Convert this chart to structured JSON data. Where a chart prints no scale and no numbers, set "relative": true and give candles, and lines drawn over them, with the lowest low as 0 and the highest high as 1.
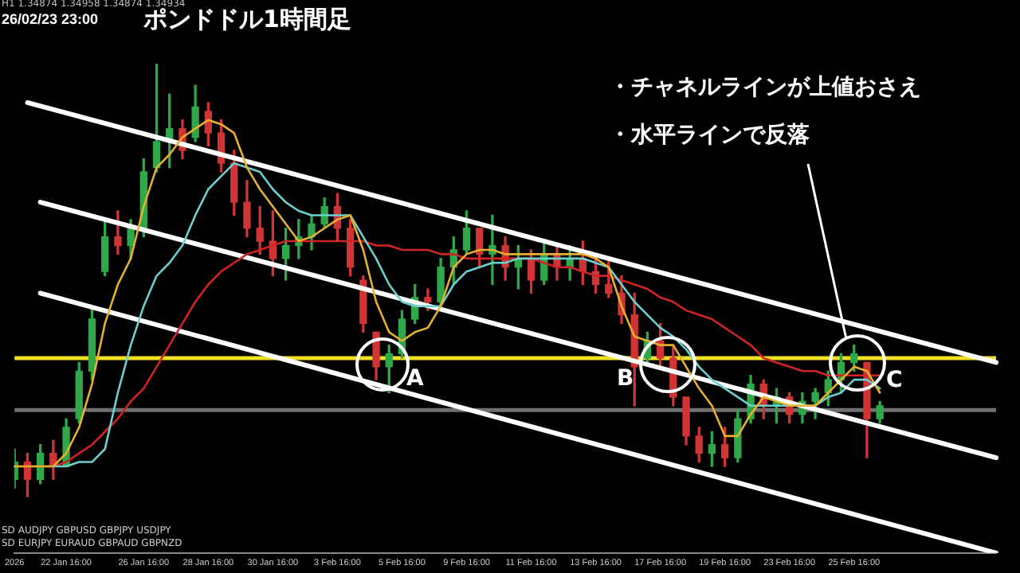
{
  "chart_data": {
    "type": "candlestick",
    "title": "ポンドドル1時間足",
    "relative": true,
    "legend": false,
    "grid": false,
    "marker": "none",
    "line_style": "solid",
    "categories": [
      "2026",
      null,
      null,
      null,
      "22 Jan 16:00",
      null,
      null,
      null,
      null,
      null,
      "26 Jan 16:00",
      null,
      null,
      null,
      null,
      "28 Jan 16:00",
      null,
      null,
      null,
      null,
      "30 Jan 16:00",
      null,
      null,
      null,
      null,
      "3 Feb 16:00",
      null,
      null,
      null,
      null,
      "5 Feb 16:00",
      null,
      null,
      null,
      null,
      "9 Feb 16:00",
      null,
      null,
      null,
      null,
      "11 Feb 16:00",
      null,
      null,
      null,
      null,
      "13 Feb 16:00",
      null,
      null,
      null,
      null,
      "17 Feb 16:00",
      null,
      null,
      null,
      null,
      "19 Feb 16:00",
      null,
      null,
      null,
      null,
      "23 Feb 16:00",
      null,
      null,
      null,
      null,
      "25 Feb 16:00",
      null,
      null,
      null,
      null,
      null,
      null,
      null,
      null,
      null,
      null,
      null
    ],
    "ohlc": [
      [
        0.04,
        0.11,
        0.02,
        0.08
      ],
      [
        0.08,
        0.1,
        0,
        0.04
      ],
      [
        0.04,
        0.12,
        0.03,
        0.1
      ],
      [
        0.1,
        0.13,
        0.04,
        0.07
      ],
      [
        0.07,
        0.18,
        0.07,
        0.16
      ],
      [
        0.18,
        0.31,
        0.17,
        0.29
      ],
      [
        0.29,
        0.44,
        0.27,
        0.41
      ],
      [
        0.52,
        0.64,
        0.51,
        0.6
      ],
      [
        0.6,
        0.66,
        0.56,
        0.58
      ],
      [
        0.58,
        0.64,
        0.55,
        0.62
      ],
      [
        0.62,
        0.78,
        0.6,
        0.75
      ],
      [
        0.76,
        1,
        0.75,
        0.82
      ],
      [
        0.82,
        0.93,
        0.76,
        0.85
      ],
      [
        0.85,
        0.87,
        0.78,
        0.8
      ],
      [
        0.83,
        0.95,
        0.82,
        0.9
      ],
      [
        0.89,
        0.91,
        0.81,
        0.84
      ],
      [
        0.84,
        0.87,
        0.75,
        0.77
      ],
      [
        0.77,
        0.8,
        0.65,
        0.68
      ],
      [
        0.68,
        0.73,
        0.6,
        0.62
      ],
      [
        0.62,
        0.67,
        0.56,
        0.59
      ],
      [
        0.59,
        0.66,
        0.51,
        0.55
      ],
      [
        0.55,
        0.62,
        0.5,
        0.58
      ],
      [
        0.58,
        0.64,
        0.55,
        0.6
      ],
      [
        0.6,
        0.65,
        0.57,
        0.63
      ],
      [
        0.63,
        0.69,
        0.62,
        0.67
      ],
      [
        0.67,
        0.7,
        0.59,
        0.62
      ],
      [
        0.62,
        0.64,
        0.51,
        0.53
      ],
      [
        0.5,
        0.51,
        0.38,
        0.4
      ],
      [
        0.38,
        0.38,
        0.27,
        0.3
      ],
      [
        0.3,
        0.35,
        0.24,
        0.33
      ],
      [
        0.33,
        0.43,
        0.32,
        0.41
      ],
      [
        0.41,
        0.49,
        0.4,
        0.46
      ],
      [
        0.46,
        0.48,
        0.43,
        0.45
      ],
      [
        0.45,
        0.55,
        0.44,
        0.53
      ],
      [
        0.53,
        0.6,
        0.49,
        0.57
      ],
      [
        0.57,
        0.66,
        0.56,
        0.62
      ],
      [
        0.62,
        0.62,
        0.53,
        0.56
      ],
      [
        0.56,
        0.65,
        0.49,
        0.58
      ],
      [
        0.58,
        0.6,
        0.5,
        0.53
      ],
      [
        0.53,
        0.58,
        0.48,
        0.55
      ],
      [
        0.55,
        0.57,
        0.47,
        0.5
      ],
      [
        0.5,
        0.59,
        0.49,
        0.56
      ],
      [
        0.56,
        0.58,
        0.5,
        0.53
      ],
      [
        0.53,
        0.58,
        0.5,
        0.55
      ],
      [
        0.55,
        0.59,
        0.49,
        0.52
      ],
      [
        0.52,
        0.56,
        0.47,
        0.49
      ],
      [
        0.49,
        0.55,
        0.46,
        0.47
      ],
      [
        0.47,
        0.51,
        0.4,
        0.42
      ],
      [
        0.42,
        0.47,
        0.21,
        0.3
      ],
      [
        0.32,
        0.38,
        0.31,
        0.36
      ],
      [
        0.36,
        0.4,
        0.3,
        0.32
      ],
      [
        0.32,
        0.35,
        0.21,
        0.23
      ],
      [
        0.23,
        0.23,
        0.12,
        0.14
      ],
      [
        0.14,
        0.16,
        0.08,
        0.1
      ],
      [
        0.1,
        0.15,
        0.07,
        0.12
      ],
      [
        0.12,
        0.16,
        0.07,
        0.09
      ],
      [
        0.09,
        0.2,
        0.08,
        0.18
      ],
      [
        0.18,
        0.28,
        0.17,
        0.26
      ],
      [
        0.26,
        0.27,
        0.18,
        0.21
      ],
      [
        0.21,
        0.25,
        0.17,
        0.23
      ],
      [
        0.23,
        0.24,
        0.17,
        0.19
      ],
      [
        0.19,
        0.24,
        0.17,
        0.22
      ],
      [
        0.22,
        0.25,
        0.18,
        0.24
      ],
      [
        0.24,
        0.29,
        0.21,
        0.27
      ],
      [
        0.27,
        0.33,
        0.24,
        0.31
      ],
      [
        0.31,
        0.35,
        0.29,
        0.33
      ],
      [
        0.31,
        0.31,
        0.09,
        0.18
      ],
      [
        0.18,
        0.22,
        0.17,
        0.21
      ],
      null,
      null,
      null,
      null,
      null,
      null,
      null,
      null,
      null
    ],
    "series": [
      {
        "type": "line",
        "color": "#e8b030",
        "values": [
          0.07,
          0.07,
          0.07,
          0.07,
          0.1,
          0.16,
          0.26,
          0.4,
          0.49,
          0.55,
          0.67,
          0.76,
          0.79,
          0.83,
          0.85,
          0.87,
          0.86,
          0.84,
          0.76,
          0.71,
          0.67,
          0.63,
          0.59,
          0.6,
          0.62,
          0.64,
          0.65,
          0.57,
          0.45,
          0.38,
          0.36,
          0.38,
          0.39,
          0.44,
          0.53,
          0.56,
          0.57,
          0.57,
          0.56,
          0.56,
          0.56,
          0.56,
          0.56,
          0.56,
          0.56,
          0.55,
          0.53,
          0.44,
          0.37,
          0.36,
          0.35,
          0.35,
          0.3,
          0.25,
          0.21,
          0.14,
          0.14,
          0.19,
          0.23,
          0.22,
          0.21,
          0.21,
          0.21,
          0.24,
          0.27,
          0.3,
          0.29,
          0.24,
          null,
          null,
          null,
          null,
          null,
          null,
          null,
          null,
          null
        ]
      },
      {
        "type": "line",
        "color": "#6ccfd0",
        "values": [
          null,
          null,
          null,
          0.07,
          0.07,
          0.08,
          0.08,
          0.11,
          0.24,
          0.35,
          0.44,
          0.51,
          0.54,
          0.58,
          0.65,
          0.71,
          0.74,
          0.77,
          0.76,
          0.75,
          0.71,
          0.68,
          0.66,
          0.65,
          0.65,
          0.65,
          0.65,
          0.6,
          0.55,
          0.49,
          0.45,
          0.44,
          0.44,
          0.44,
          0.49,
          0.52,
          0.53,
          0.54,
          0.54,
          0.55,
          0.55,
          0.55,
          0.55,
          0.55,
          0.55,
          0.54,
          0.53,
          0.49,
          0.45,
          0.42,
          0.39,
          0.37,
          0.34,
          0.3,
          0.27,
          0.25,
          0.23,
          0.21,
          0.21,
          0.21,
          0.21,
          0.21,
          0.21,
          0.23,
          0.24,
          0.27,
          0.27,
          0.25,
          null,
          null,
          null,
          null,
          null,
          null,
          null,
          null,
          null
        ]
      },
      {
        "type": "line",
        "color": "#d02424",
        "values": [
          0.07,
          0.07,
          0.07,
          0.07,
          0.08,
          0.1,
          0.12,
          0.15,
          0.18,
          0.22,
          0.25,
          0.3,
          0.35,
          0.4,
          0.45,
          0.49,
          0.52,
          0.54,
          0.56,
          0.57,
          0.58,
          0.59,
          0.59,
          0.59,
          0.59,
          0.59,
          0.59,
          0.59,
          0.58,
          0.58,
          0.57,
          0.57,
          0.57,
          0.56,
          0.56,
          0.55,
          0.55,
          0.55,
          0.55,
          0.55,
          0.55,
          0.54,
          0.53,
          0.53,
          0.52,
          0.51,
          0.51,
          0.5,
          0.49,
          0.48,
          0.46,
          0.45,
          0.43,
          0.42,
          0.41,
          0.39,
          0.37,
          0.35,
          0.32,
          0.31,
          0.3,
          0.29,
          0.29,
          0.28,
          0.28,
          0.28,
          0.28,
          0.28,
          null,
          null,
          null,
          null,
          null,
          null,
          null,
          null,
          null
        ]
      },
      {
        "type": "line",
        "color": "#ffffff",
        "values": [
          null,
          0.91,
          null,
          null,
          null,
          null,
          null,
          null,
          null,
          null,
          null,
          null,
          null,
          null,
          null,
          null,
          null,
          null,
          null,
          null,
          null,
          null,
          null,
          null,
          null,
          null,
          null,
          null,
          null,
          null,
          null,
          null,
          null,
          null,
          null,
          null,
          null,
          null,
          null,
          null,
          null,
          null,
          null,
          null,
          null,
          null,
          null,
          null,
          null,
          null,
          null,
          null,
          null,
          null,
          null,
          null,
          null,
          null,
          null,
          null,
          null,
          null,
          null,
          null,
          null,
          null,
          null,
          null,
          null,
          null,
          null,
          null,
          null,
          null,
          null,
          null,
          0.31
        ]
      },
      {
        "type": "line",
        "color": "#ffffff",
        "values": [
          null,
          null,
          0.68,
          null,
          null,
          null,
          null,
          null,
          null,
          null,
          null,
          null,
          null,
          null,
          null,
          null,
          null,
          null,
          null,
          null,
          null,
          null,
          null,
          null,
          null,
          null,
          null,
          null,
          null,
          null,
          null,
          null,
          null,
          null,
          null,
          null,
          null,
          null,
          null,
          null,
          null,
          null,
          null,
          null,
          null,
          null,
          null,
          null,
          null,
          null,
          null,
          null,
          null,
          null,
          null,
          null,
          null,
          null,
          null,
          null,
          null,
          null,
          null,
          null,
          null,
          null,
          null,
          null,
          null,
          null,
          null,
          null,
          null,
          null,
          null,
          null,
          0.09
        ]
      },
      {
        "type": "line",
        "color": "#ffffff",
        "values": [
          null,
          null,
          0.47,
          null,
          null,
          null,
          null,
          null,
          null,
          null,
          null,
          null,
          null,
          null,
          null,
          null,
          null,
          null,
          null,
          null,
          null,
          null,
          null,
          null,
          null,
          null,
          null,
          null,
          null,
          null,
          null,
          null,
          null,
          null,
          null,
          null,
          null,
          null,
          null,
          null,
          null,
          null,
          null,
          null,
          null,
          null,
          null,
          null,
          null,
          null,
          null,
          null,
          null,
          null,
          null,
          null,
          null,
          null,
          null,
          null,
          null,
          null,
          null,
          null,
          null,
          null,
          null,
          null,
          null,
          null,
          null,
          null,
          null,
          null,
          null,
          null,
          -0.13
        ]
      }
    ],
    "ref_lines": [
      {
        "axis": "y",
        "value": 0.32,
        "color": "#f0e020"
      },
      {
        "axis": "y",
        "value": 0.2,
        "color": "#707070"
      }
    ],
    "annotations": [
      "26/02/23 23:00",
      "H1 1.34874 1.34958 1.34874 1.34934",
      "・チャネルラインが上値おさえ",
      "・水平ラインで反落",
      "A",
      "B",
      "C",
      "SD AUDJPY GBPUSD GBPJPY USDJPY",
      "SD EURJPY EURAUD GBPAUD GBPNZD"
    ]
  }
}
